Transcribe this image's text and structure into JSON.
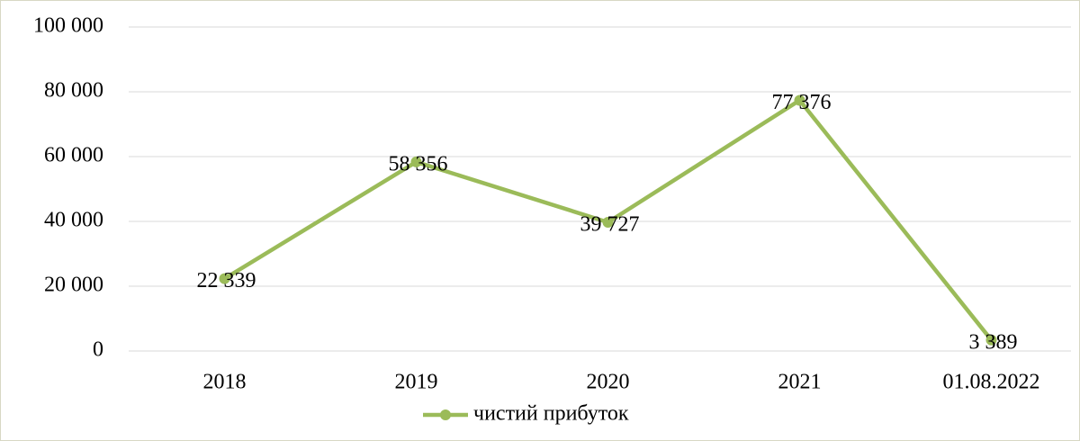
{
  "chart_data": {
    "type": "line",
    "categories": [
      "2018",
      "2019",
      "2020",
      "2021",
      "01.08.2022"
    ],
    "series": [
      {
        "name": "чистий прибуток",
        "color": "#9bbb59",
        "values": [
          22339,
          58356,
          39727,
          77376,
          3389
        ],
        "value_labels": [
          "22 339",
          "58 356",
          "39 727",
          "77 376",
          "3 389"
        ]
      }
    ],
    "ylim": [
      0,
      100000
    ],
    "yticks": [
      0,
      {
        "value": 20000,
        "label": "20 000"
      },
      {
        "value": 40000,
        "label": "40 000"
      },
      {
        "value": 60000,
        "label": "60 000"
      },
      {
        "value": 80000,
        "label": "80 000"
      },
      {
        "value": 100000,
        "label": "100 000"
      }
    ],
    "grid": true,
    "legend": "bottom"
  }
}
